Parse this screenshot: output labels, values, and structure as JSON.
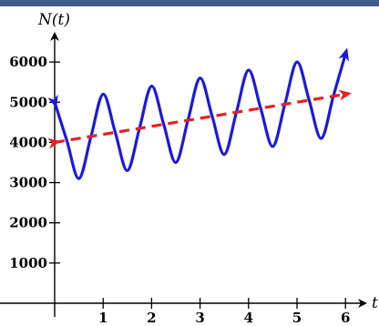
{
  "chart_data": {
    "type": "line",
    "xlabel": "t",
    "ylabel": "N(t)",
    "xlim": [
      0,
      6.4
    ],
    "ylim": [
      0,
      6500
    ],
    "x_ticks": [
      "1",
      "2",
      "3",
      "4",
      "5",
      "6"
    ],
    "y_ticks": [
      "1000",
      "2000",
      "3000",
      "4000",
      "5000",
      "6000"
    ],
    "x_tick_values": [
      1,
      2,
      3,
      4,
      5,
      6
    ],
    "y_tick_values": [
      1000,
      2000,
      3000,
      4000,
      5000,
      6000
    ],
    "grid": false,
    "series": [
      {
        "style": "solid",
        "color": "#1a1adc",
        "x": [
          0,
          0.25,
          0.5,
          0.75,
          1,
          1.25,
          1.5,
          1.75,
          2,
          2.25,
          2.5,
          2.75,
          3,
          3.25,
          3.5,
          3.75,
          4,
          4.25,
          4.5,
          4.75,
          5,
          5.25,
          5.5,
          5.75,
          6
        ],
        "y": [
          5000,
          4050,
          3100,
          4150,
          5200,
          4250,
          3300,
          4350,
          5400,
          4450,
          3500,
          4550,
          5600,
          4650,
          3700,
          4750,
          5800,
          4850,
          3900,
          4950,
          6000,
          5050,
          4100,
          5150,
          6200
        ]
      },
      {
        "style": "dashed",
        "color": "#e82020",
        "x": [
          0,
          6
        ],
        "y": [
          4000,
          5200
        ]
      }
    ]
  }
}
